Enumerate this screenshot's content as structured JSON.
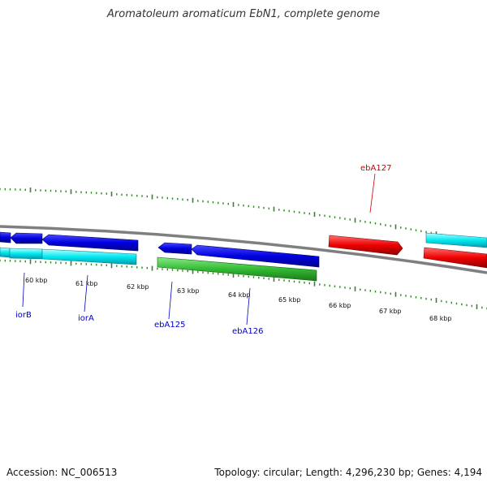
{
  "title": "Aromatoleum aromaticum EbN1, complete genome",
  "footer": {
    "accession": "Accession: NC_006513",
    "summary": "Topology: circular; Length: 4,296,230 bp; Genes: 4,194"
  },
  "colors": {
    "backbone": "#808080",
    "tick": "#2e8b22",
    "scale_label": "#111111",
    "gene_label_blue": "#0000c0",
    "gene_label_red": "#d00000",
    "cds_blue": "#0000e0",
    "cds_cyan": "#00e8f0",
    "cds_green": "#33bb33",
    "cds_red": "#ee0000"
  },
  "scale": {
    "unit": "kbp",
    "labels": [
      "60 kbp",
      "61 kbp",
      "62 kbp",
      "63 kbp",
      "64 kbp",
      "65 kbp",
      "66 kbp",
      "67 kbp",
      "68 kbp"
    ]
  },
  "gene_labels": [
    {
      "text": "iorB",
      "color": "blue"
    },
    {
      "text": "iorA",
      "color": "blue"
    },
    {
      "text": "ebA125",
      "color": "blue"
    },
    {
      "text": "ebA126",
      "color": "blue"
    },
    {
      "text": "ebA127",
      "color": "red"
    }
  ],
  "features": [
    {
      "name": "blue-cds-1",
      "color": "blue",
      "strand": "reverse"
    },
    {
      "name": "blue-cds-2",
      "color": "blue",
      "strand": "reverse"
    },
    {
      "name": "blue-cds-3",
      "color": "blue",
      "strand": "reverse"
    },
    {
      "name": "blue-cds-4",
      "color": "blue",
      "strand": "reverse"
    },
    {
      "name": "blue-cds-5",
      "color": "blue",
      "strand": "reverse"
    },
    {
      "name": "cyan-cds-1",
      "color": "cyan",
      "strand": "forward"
    },
    {
      "name": "cyan-cds-2",
      "color": "cyan",
      "strand": "forward"
    },
    {
      "name": "cyan-cds-3",
      "color": "cyan",
      "strand": "forward"
    },
    {
      "name": "green-cds-1",
      "color": "green",
      "strand": "forward"
    },
    {
      "name": "red-cds-1",
      "color": "red",
      "strand": "forward"
    },
    {
      "name": "red-cds-2",
      "color": "red",
      "strand": "forward"
    }
  ]
}
